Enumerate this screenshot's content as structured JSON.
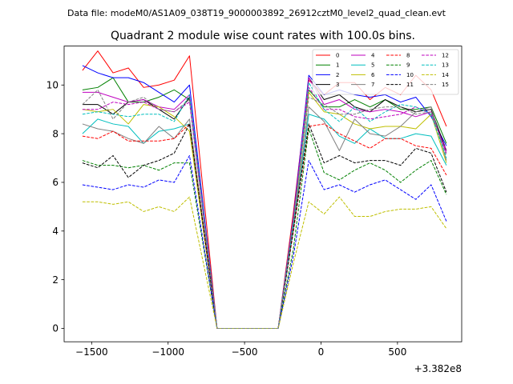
{
  "header": "Data file: modeM0/AS1A09_038T19_9000003892_26912cztM0_level2_quad_clean.evt",
  "chart_data": {
    "type": "line",
    "title": "Quadrant 2 module wise count rates with 100.0s bins.",
    "xlabel": "",
    "ylabel": "",
    "x_offset_label": "+3.382e8",
    "xlim": [
      -1680,
      920
    ],
    "ylim": [
      -0.55,
      11.6
    ],
    "xticks": [
      -1500,
      -1000,
      -500,
      0,
      500
    ],
    "xtick_labels": [
      "−1500",
      "−1000",
      "−500",
      "0",
      "500"
    ],
    "yticks": [
      0,
      2,
      4,
      6,
      8,
      10
    ],
    "ytick_labels": [
      "0",
      "2",
      "4",
      "6",
      "8",
      "10"
    ],
    "grid": false,
    "legend": {
      "placement": "top-right",
      "columns": 4
    },
    "x": [
      -1560,
      -1460,
      -1360,
      -1260,
      -1160,
      -1060,
      -960,
      -860,
      -680,
      -280,
      -180,
      -80,
      20,
      120,
      220,
      320,
      420,
      520,
      620,
      720,
      820
    ],
    "series": [
      {
        "name": "0",
        "color": "#ff0000",
        "dash": "solid",
        "values": [
          10.6,
          11.4,
          10.5,
          10.7,
          9.9,
          10.0,
          10.2,
          11.2,
          0,
          0,
          4.8,
          10.2,
          9.6,
          10.1,
          10.1,
          9.4,
          9.9,
          9.6,
          10.4,
          9.8,
          8.3
        ]
      },
      {
        "name": "1",
        "color": "#008000",
        "dash": "solid",
        "values": [
          9.8,
          9.9,
          10.3,
          9.3,
          9.3,
          9.5,
          9.8,
          9.4,
          0,
          0,
          4.5,
          9.8,
          9.1,
          9.1,
          9.4,
          9.1,
          9.4,
          9.0,
          9.0,
          9.1,
          7.6
        ]
      },
      {
        "name": "2",
        "color": "#0000ff",
        "dash": "solid",
        "values": [
          10.8,
          10.5,
          10.3,
          10.3,
          10.1,
          9.7,
          9.3,
          10.0,
          0,
          0,
          4.6,
          10.4,
          9.6,
          9.8,
          9.6,
          9.5,
          9.6,
          9.3,
          9.5,
          8.7,
          7.5
        ]
      },
      {
        "name": "3",
        "color": "#000000",
        "dash": "solid",
        "values": [
          9.2,
          9.2,
          8.8,
          9.3,
          9.4,
          9.0,
          8.6,
          9.5,
          0,
          0,
          4.4,
          10.3,
          9.4,
          9.6,
          9.1,
          8.9,
          9.4,
          9.1,
          8.9,
          9.0,
          7.3
        ]
      },
      {
        "name": "4",
        "color": "#bf00bf",
        "dash": "solid",
        "values": [
          9.7,
          9.7,
          9.5,
          9.3,
          9.4,
          9.1,
          9.0,
          9.6,
          0,
          0,
          4.5,
          10.3,
          9.2,
          9.4,
          9.0,
          8.9,
          9.0,
          8.9,
          8.7,
          8.9,
          7.2
        ]
      },
      {
        "name": "5",
        "color": "#00bfbf",
        "dash": "solid",
        "values": [
          8.0,
          8.6,
          8.4,
          8.3,
          7.6,
          8.1,
          8.2,
          8.4,
          0,
          0,
          4.1,
          8.8,
          8.6,
          7.9,
          7.6,
          8.2,
          7.8,
          7.8,
          8.0,
          7.9,
          6.7
        ]
      },
      {
        "name": "6",
        "color": "#bfbf00",
        "dash": "solid",
        "values": [
          9.0,
          8.9,
          9.0,
          8.4,
          9.2,
          9.1,
          8.7,
          8.1,
          0,
          0,
          4.3,
          9.7,
          8.9,
          8.8,
          8.4,
          8.2,
          8.3,
          8.3,
          8.2,
          8.8,
          6.8
        ]
      },
      {
        "name": "7",
        "color": "#808080",
        "dash": "solid",
        "values": [
          8.4,
          8.2,
          8.1,
          7.8,
          7.6,
          8.3,
          7.8,
          8.6,
          0,
          0,
          4.2,
          9.1,
          8.5,
          7.3,
          8.6,
          8.0,
          7.9,
          8.3,
          8.9,
          9.1,
          6.9
        ]
      },
      {
        "name": "8",
        "color": "#ff0000",
        "dash": "dashed",
        "values": [
          7.9,
          7.8,
          8.1,
          7.7,
          7.7,
          7.7,
          7.8,
          8.4,
          0,
          0,
          4.0,
          8.3,
          8.4,
          8.0,
          7.7,
          7.4,
          7.8,
          7.8,
          7.5,
          7.4,
          6.3
        ]
      },
      {
        "name": "9",
        "color": "#008000",
        "dash": "dashed",
        "values": [
          6.9,
          6.7,
          6.7,
          6.6,
          6.7,
          6.5,
          6.8,
          6.8,
          0,
          0,
          3.3,
          8.2,
          6.4,
          6.1,
          6.5,
          6.8,
          6.5,
          6.0,
          6.5,
          6.9,
          5.5
        ]
      },
      {
        "name": "10",
        "color": "#0000ff",
        "dash": "dashed",
        "values": [
          5.9,
          5.8,
          5.7,
          5.9,
          5.8,
          6.1,
          6.0,
          7.1,
          0,
          0,
          3.0,
          6.9,
          5.7,
          5.9,
          5.6,
          5.9,
          6.1,
          5.7,
          5.3,
          5.9,
          4.4
        ]
      },
      {
        "name": "11",
        "color": "#000000",
        "dash": "dashed",
        "values": [
          6.8,
          6.6,
          7.1,
          6.2,
          6.7,
          6.9,
          7.2,
          8.4,
          0,
          0,
          4.1,
          8.4,
          6.8,
          7.1,
          6.8,
          6.9,
          6.9,
          6.7,
          7.4,
          7.2,
          5.6
        ]
      },
      {
        "name": "12",
        "color": "#bf00bf",
        "dash": "dashed",
        "values": [
          9.0,
          9.0,
          9.3,
          9.2,
          9.3,
          9.0,
          8.9,
          9.3,
          0,
          0,
          4.5,
          9.9,
          9.0,
          9.0,
          8.7,
          8.6,
          8.7,
          8.8,
          9.1,
          8.8,
          7.3
        ]
      },
      {
        "name": "13",
        "color": "#00bfbf",
        "dash": "dashed",
        "values": [
          8.8,
          8.9,
          8.8,
          8.7,
          8.8,
          8.8,
          8.5,
          9.6,
          0,
          0,
          4.3,
          10.1,
          9.0,
          8.5,
          9.1,
          8.5,
          8.9,
          9.2,
          9.1,
          8.8,
          7.0
        ]
      },
      {
        "name": "14",
        "color": "#bfbf00",
        "dash": "dashed",
        "values": [
          5.2,
          5.2,
          5.1,
          5.2,
          4.8,
          5.0,
          4.8,
          5.4,
          0,
          0,
          2.7,
          5.2,
          4.7,
          5.4,
          4.6,
          4.6,
          4.8,
          4.9,
          4.9,
          5.0,
          4.1
        ]
      },
      {
        "name": "15",
        "color": "#808080",
        "dash": "dashed",
        "values": [
          9.2,
          9.8,
          8.6,
          9.3,
          9.5,
          9.0,
          8.9,
          9.4,
          0,
          0,
          4.5,
          9.5,
          9.2,
          8.8,
          8.8,
          9.0,
          9.1,
          9.1,
          8.8,
          8.9,
          7.1
        ]
      }
    ]
  }
}
